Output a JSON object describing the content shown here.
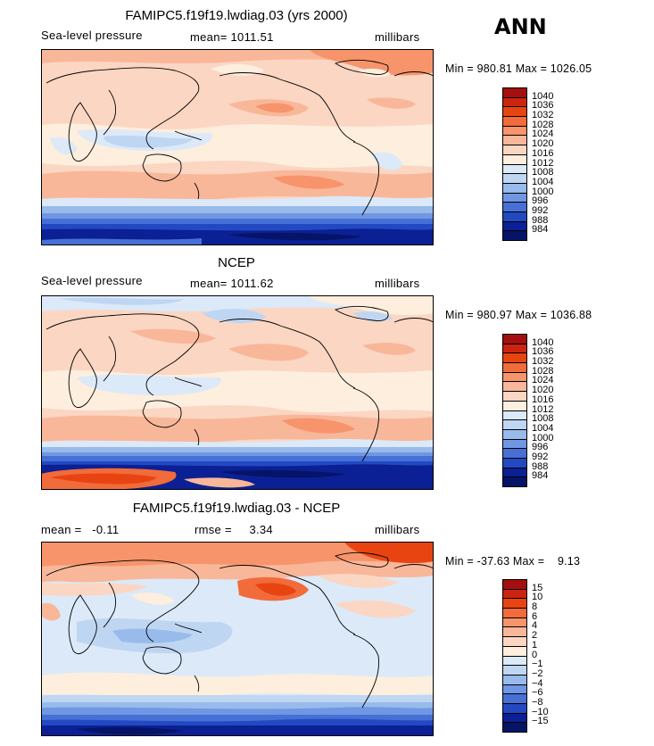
{
  "season": "ANN",
  "panels": [
    {
      "id": "model",
      "title": "FAMIPC5.f19f19.lwdiag.03 (yrs 2000)",
      "left_label": "Sea-level pressure",
      "center_label": "mean= 1011.51",
      "units": "millibars",
      "minmax": "Min = 980.81 Max = 1026.05",
      "colorbar_levels": [
        "1040",
        "1036",
        "1032",
        "1028",
        "1024",
        "1020",
        "1016",
        "1012",
        "1008",
        "1004",
        "1000",
        "996",
        "992",
        "988",
        "984"
      ],
      "colorbar_colors": [
        "#a50f0f",
        "#cc2410",
        "#e84412",
        "#f26b3a",
        "#f7946b",
        "#f9b79a",
        "#fbd6c3",
        "#fdeede",
        "#dce9f8",
        "#bfd6f2",
        "#99bbeb",
        "#6f97e3",
        "#4770d6",
        "#2349c2",
        "#0b2094",
        "#061468"
      ]
    },
    {
      "id": "obs",
      "title": "NCEP",
      "left_label": "Sea-level pressure",
      "center_label": "mean= 1011.62",
      "units": "millibars",
      "minmax": "Min = 980.97 Max = 1036.88",
      "colorbar_levels": [
        "1040",
        "1036",
        "1032",
        "1028",
        "1024",
        "1020",
        "1016",
        "1012",
        "1008",
        "1004",
        "1000",
        "996",
        "992",
        "988",
        "984"
      ],
      "colorbar_colors": [
        "#a50f0f",
        "#cc2410",
        "#e84412",
        "#f26b3a",
        "#f7946b",
        "#f9b79a",
        "#fbd6c3",
        "#fdeede",
        "#dce9f8",
        "#bfd6f2",
        "#99bbeb",
        "#6f97e3",
        "#4770d6",
        "#2349c2",
        "#0b2094",
        "#061468"
      ]
    },
    {
      "id": "diff",
      "title": "FAMIPC5.f19f19.lwdiag.03 - NCEP",
      "left_label": "mean =   -0.11",
      "center_label": "rmse =     3.34",
      "units": "millibars",
      "minmax": "Min = -37.63 Max =    9.13",
      "colorbar_levels": [
        "15",
        "10",
        "8",
        "6",
        "4",
        "2",
        "1",
        "0",
        "−1",
        "−2",
        "−4",
        "−6",
        "−8",
        "−10",
        "−15"
      ],
      "colorbar_colors": [
        "#a50f0f",
        "#cc2410",
        "#e84412",
        "#f26b3a",
        "#f7946b",
        "#f9b79a",
        "#fbd6c3",
        "#fdeede",
        "#dce9f8",
        "#bfd6f2",
        "#99bbeb",
        "#6f97e3",
        "#4770d6",
        "#2349c2",
        "#0b2094",
        "#061468"
      ]
    }
  ]
}
